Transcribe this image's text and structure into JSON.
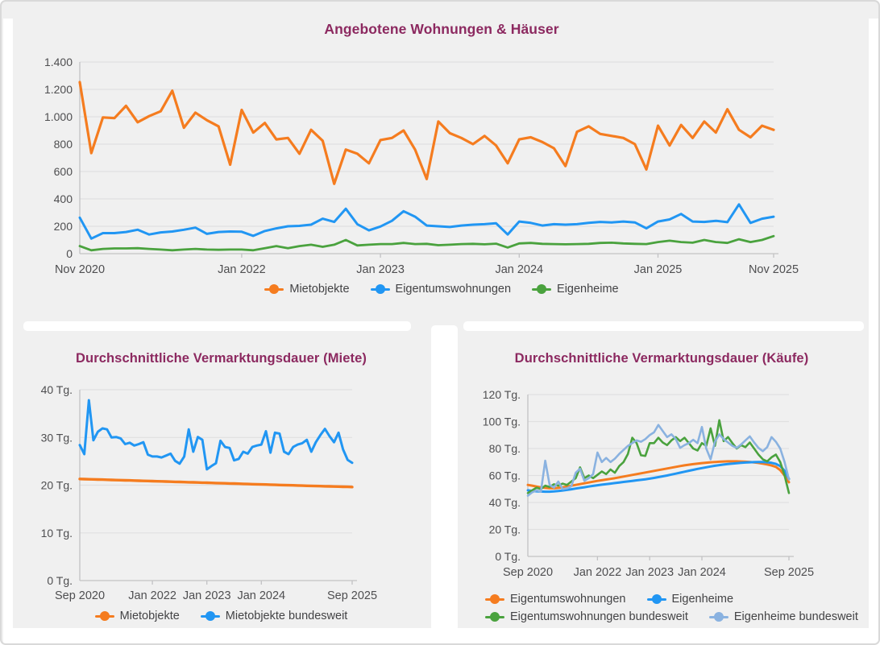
{
  "theme": {
    "panel_bg": "#f0f0f0",
    "divider_color": "#ffffff",
    "title_color": "#8c2960",
    "grid_color": "#e0e0e1",
    "axis_color": "#c2c2c4",
    "tick_label_color": "#4e4e50",
    "legend_text_color": "#434345"
  },
  "chart_data": [
    {
      "id": "angebote",
      "type": "line",
      "title": "Angebotene Wohnungen & Häuser",
      "x_points": 61,
      "x_ticks": [
        {
          "label": "Nov 2020",
          "index": 0
        },
        {
          "label": "Jan 2022",
          "index": 14
        },
        {
          "label": "Jan 2023",
          "index": 26
        },
        {
          "label": "Jan 2024",
          "index": 38
        },
        {
          "label": "Jan 2025",
          "index": 50
        },
        {
          "label": "Nov 2025",
          "index": 60
        }
      ],
      "ylim": [
        0,
        1400
      ],
      "y_ticks": [
        {
          "value": 1400,
          "label": "1.400"
        },
        {
          "value": 1200,
          "label": "1.200"
        },
        {
          "value": 1000,
          "label": "1.000"
        },
        {
          "value": 800,
          "label": "800"
        },
        {
          "value": 600,
          "label": "600"
        },
        {
          "value": 400,
          "label": "400"
        },
        {
          "value": 200,
          "label": "200"
        },
        {
          "value": 0,
          "label": "0"
        }
      ],
      "legend_position": "bottom-center",
      "grid": true,
      "series": [
        {
          "name": "Mietobjekte",
          "color": "#f57c1f",
          "values": [
            1253,
            735,
            995,
            990,
            1080,
            960,
            1005,
            1040,
            1190,
            920,
            1030,
            975,
            930,
            650,
            1050,
            885,
            955,
            835,
            845,
            730,
            905,
            825,
            510,
            760,
            730,
            660,
            830,
            845,
            900,
            760,
            545,
            965,
            880,
            845,
            800,
            860,
            790,
            660,
            835,
            850,
            815,
            770,
            640,
            890,
            930,
            875,
            860,
            845,
            800,
            615,
            935,
            790,
            940,
            845,
            965,
            885,
            1055,
            905,
            850,
            935,
            905
          ]
        },
        {
          "name": "Eigentumswohnungen",
          "color": "#2196f3",
          "values": [
            263,
            110,
            150,
            150,
            158,
            175,
            140,
            155,
            162,
            175,
            190,
            145,
            158,
            162,
            160,
            130,
            165,
            185,
            200,
            203,
            212,
            255,
            232,
            328,
            215,
            170,
            198,
            240,
            310,
            270,
            205,
            200,
            195,
            205,
            212,
            215,
            222,
            140,
            235,
            225,
            205,
            215,
            212,
            215,
            225,
            232,
            228,
            235,
            228,
            185,
            235,
            250,
            290,
            235,
            232,
            240,
            230,
            360,
            225,
            255,
            270
          ]
        },
        {
          "name": "Eigenheime",
          "color": "#4aa23e",
          "values": [
            55,
            25,
            35,
            38,
            38,
            40,
            35,
            30,
            25,
            30,
            35,
            30,
            28,
            30,
            30,
            25,
            40,
            55,
            40,
            55,
            65,
            50,
            65,
            100,
            60,
            65,
            70,
            70,
            78,
            70,
            72,
            62,
            65,
            70,
            72,
            68,
            73,
            45,
            75,
            78,
            72,
            70,
            68,
            70,
            72,
            78,
            80,
            75,
            72,
            70,
            85,
            95,
            85,
            80,
            100,
            85,
            78,
            105,
            85,
            100,
            128
          ]
        }
      ]
    },
    {
      "id": "miete",
      "type": "line",
      "title": "Durchschnittliche Vermarktungsdauer (Miete)",
      "x_points": 61,
      "x_ticks": [
        {
          "label": "Sep 2020",
          "index": 0
        },
        {
          "label": "Jan 2022",
          "index": 16
        },
        {
          "label": "Jan 2023",
          "index": 28
        },
        {
          "label": "Jan 2024",
          "index": 40
        },
        {
          "label": "Sep 2025",
          "index": 60
        }
      ],
      "ylim": [
        0,
        40
      ],
      "y_ticks": [
        {
          "value": 40,
          "label": "40 Tg."
        },
        {
          "value": 30,
          "label": "30 Tg."
        },
        {
          "value": 20,
          "label": "20 Tg."
        },
        {
          "value": 10,
          "label": "10 Tg."
        },
        {
          "value": 0,
          "label": "0 Tg."
        }
      ],
      "legend_position": "bottom-center",
      "grid": true,
      "series": [
        {
          "name": "Mietobjekte",
          "color": "#f57c1f",
          "values": [
            21.3,
            21.27,
            21.24,
            21.21,
            21.18,
            21.16,
            21.13,
            21.1,
            21.07,
            21.04,
            21.01,
            20.99,
            20.96,
            20.93,
            20.9,
            20.87,
            20.84,
            20.81,
            20.79,
            20.76,
            20.73,
            20.7,
            20.67,
            20.64,
            20.61,
            20.59,
            20.56,
            20.53,
            20.5,
            20.47,
            20.44,
            20.41,
            20.39,
            20.36,
            20.33,
            20.3,
            20.27,
            20.24,
            20.21,
            20.19,
            20.16,
            20.13,
            20.1,
            20.07,
            20.04,
            20.01,
            19.99,
            19.96,
            19.93,
            19.9,
            19.87,
            19.85,
            19.82,
            19.79,
            19.77,
            19.74,
            19.72,
            19.69,
            19.67,
            19.64,
            19.62
          ]
        },
        {
          "name": "Mietobjekte bundesweit",
          "color": "#2196f3",
          "values": [
            28.4,
            26.5,
            37.8,
            29.4,
            31.2,
            31.9,
            31.7,
            30.0,
            30.1,
            29.8,
            28.6,
            28.9,
            28.3,
            28.6,
            29.0,
            26.4,
            26.0,
            26.0,
            25.8,
            26.2,
            26.6,
            25.1,
            24.5,
            26.0,
            31.7,
            27.0,
            30.1,
            29.5,
            23.3,
            24.0,
            24.6,
            29.3,
            28.0,
            27.8,
            25.2,
            25.5,
            27.0,
            26.6,
            28.0,
            28.3,
            28.5,
            31.3,
            26.8,
            31.0,
            30.8,
            27.0,
            26.5,
            28.0,
            28.5,
            28.8,
            29.5,
            27.0,
            29.0,
            30.5,
            31.8,
            30.3,
            29.0,
            31.0,
            27.5,
            25.3,
            24.7
          ]
        }
      ]
    },
    {
      "id": "kaeufe",
      "type": "line",
      "title": "Durchschnittliche Vermarktungsdauer (Käufe)",
      "x_points": 61,
      "x_ticks": [
        {
          "label": "Sep 2020",
          "index": 0
        },
        {
          "label": "Jan 2022",
          "index": 16
        },
        {
          "label": "Jan 2023",
          "index": 28
        },
        {
          "label": "Jan 2024",
          "index": 40
        },
        {
          "label": "Sep 2025",
          "index": 60
        }
      ],
      "ylim": [
        0,
        120
      ],
      "y_ticks": [
        {
          "value": 120,
          "label": "120 Tg."
        },
        {
          "value": 100,
          "label": "100 Tg."
        },
        {
          "value": 80,
          "label": "80 Tg."
        },
        {
          "value": 60,
          "label": "60 Tg."
        },
        {
          "value": 40,
          "label": "40 Tg."
        },
        {
          "value": 20,
          "label": "20 Tg."
        },
        {
          "value": 0,
          "label": "0 Tg."
        }
      ],
      "legend_position": "bottom-left-two-rows",
      "grid": true,
      "series": [
        {
          "name": "Eigentumswohnungen",
          "color": "#f57c1f",
          "values": [
            53,
            52.5,
            51.8,
            51.2,
            50.8,
            50.5,
            50.5,
            50.8,
            51.2,
            51.8,
            52.4,
            53,
            53.6,
            54.2,
            54.8,
            55.4,
            56,
            56.5,
            57,
            57.5,
            58,
            58.6,
            59.2,
            59.8,
            60.4,
            61,
            61.6,
            62.2,
            62.8,
            63.4,
            64,
            64.6,
            65.2,
            65.8,
            66.4,
            67,
            67.5,
            68,
            68.4,
            68.8,
            69.2,
            69.5,
            69.8,
            70,
            70.2,
            70.4,
            70.5,
            70.5,
            70.5,
            70.4,
            70.2,
            70,
            69.7,
            69.3,
            68.8,
            68.2,
            67.4,
            66.4,
            64,
            60,
            55
          ]
        },
        {
          "name": "Eigenheime",
          "color": "#2196f3",
          "values": [
            49,
            48.6,
            48.3,
            48.1,
            48,
            48,
            48.2,
            48.5,
            48.9,
            49.3,
            49.8,
            50.3,
            50.8,
            51.3,
            51.8,
            52.3,
            52.8,
            53.2,
            53.6,
            54,
            54.4,
            54.8,
            55.2,
            55.6,
            56,
            56.4,
            56.8,
            57.2,
            57.7,
            58.2,
            58.8,
            59.4,
            60,
            60.7,
            61.4,
            62.1,
            62.8,
            63.5,
            64.2,
            64.9,
            65.5,
            66.1,
            66.7,
            67.2,
            67.7,
            68.1,
            68.5,
            68.8,
            69.1,
            69.4,
            69.6,
            69.8,
            69.9,
            70,
            70,
            69.8,
            69.4,
            68.6,
            67,
            63.5,
            57.5
          ]
        },
        {
          "name": "Eigentumswohnungen bundesweit",
          "color": "#4aa23e",
          "values": [
            47,
            49,
            51,
            50,
            52.5,
            51.5,
            53.5,
            52.5,
            54,
            53,
            55.5,
            58,
            66,
            58,
            60,
            58,
            60.5,
            63,
            61,
            64.5,
            62,
            67,
            70,
            76,
            88,
            84,
            75,
            74.5,
            84,
            84,
            88,
            84.5,
            82.5,
            86,
            88.5,
            85.5,
            88,
            84,
            80,
            78.5,
            84,
            82,
            95,
            82,
            101,
            85.5,
            88.5,
            84,
            80,
            82.5,
            81,
            84.5,
            80,
            75.5,
            72,
            70.5,
            73.5,
            75.5,
            70,
            60,
            47
          ]
        },
        {
          "name": "Eigenheime bundesweit",
          "color": "#8ab2e0",
          "values": [
            45,
            47.5,
            49,
            48,
            71,
            53,
            51,
            55.5,
            50,
            50.5,
            52,
            62,
            65,
            56,
            58,
            61,
            77,
            70,
            73,
            70,
            72.5,
            76,
            79,
            82,
            84,
            86,
            85,
            87,
            90,
            92,
            97.5,
            93,
            88.5,
            90.5,
            87,
            80.5,
            82.5,
            84,
            86.5,
            84,
            96,
            80,
            72,
            85,
            90.5,
            87,
            84.5,
            82,
            80.5,
            83,
            86,
            89,
            84.5,
            80.5,
            78,
            81,
            88.5,
            85,
            80,
            70,
            57
          ]
        }
      ]
    }
  ]
}
